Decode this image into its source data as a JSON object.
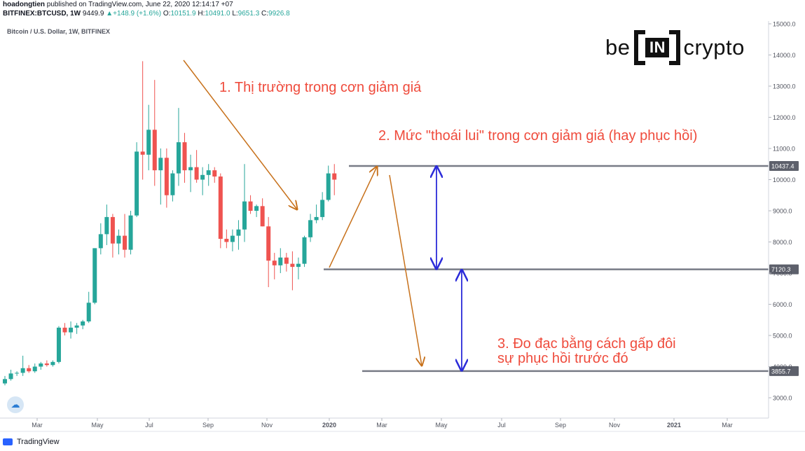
{
  "header": {
    "publisher": "hoadongtien",
    "published_text": "published on TradingView.com, June 22, 2020 12:14:17 +07",
    "symbol": "BITFINEX:BTCUSD, 1W",
    "last": "9449.9",
    "change_arrow": "▲",
    "change": "+148.9 (+1.6%)",
    "o_label": "O:",
    "o_value": "10151.9",
    "h_label": "H:",
    "h_value": "10491.0",
    "l_label": "L:",
    "l_value": "9651.3",
    "c_label": "C:",
    "c_value": "9926.8"
  },
  "subtitle": "Bitcoin / U.S. Dollar, 1W, BITFINEX",
  "footer": {
    "brand": "TradingView"
  },
  "logo": {
    "left": "be",
    "center": "IN",
    "right": "crypto"
  },
  "annotations": {
    "a1": "1. Thị trường trong cơn giảm giá",
    "a2": "2. Mức \"thoái lui\" trong cơn giảm giá (hay phục hồi)",
    "a3_line1": "3. Đo đạc bằng cách gấp đôi",
    "a3_line2": "sự phục hồi trước đó"
  },
  "colors": {
    "up": "#26a69a",
    "down": "#ef5350",
    "annotation_text": "#ef4b3c",
    "trend_arrow": "#c7711b",
    "measure_arrow": "#2b2bd9",
    "level_line": "#787b86",
    "price_tag_bg": "#5d606b"
  },
  "chart_data": {
    "type": "candlestick",
    "title": "Bitcoin / U.S. Dollar, 1W, BITFINEX",
    "ylim": [
      2400,
      15000
    ],
    "y_ticks": [
      3000,
      4000,
      5000,
      6000,
      7000,
      8000,
      9000,
      10000,
      11000,
      12000,
      13000,
      14000,
      15000
    ],
    "y_tick_labels": [
      "3000.0",
      "4000.0",
      "5000.0",
      "6000.0",
      "7000.0",
      "8000.0",
      "9000.0",
      "10000.0",
      "11000.0",
      "12000.0",
      "13000.0",
      "14000.0",
      "15000.0"
    ],
    "x_tick_labels": [
      "Mar",
      "May",
      "Jul",
      "Sep",
      "Nov",
      "2020",
      "Mar",
      "May",
      "Jul",
      "Sep",
      "Nov",
      "2021",
      "Mar"
    ],
    "candles": [
      {
        "o": 3460,
        "h": 3700,
        "l": 3400,
        "c": 3600
      },
      {
        "o": 3600,
        "h": 3900,
        "l": 3550,
        "c": 3780
      },
      {
        "o": 3780,
        "h": 3850,
        "l": 3700,
        "c": 3800
      },
      {
        "o": 3800,
        "h": 4350,
        "l": 3700,
        "c": 3950
      },
      {
        "o": 3950,
        "h": 4050,
        "l": 3800,
        "c": 3850
      },
      {
        "o": 3850,
        "h": 4100,
        "l": 3800,
        "c": 4000
      },
      {
        "o": 4000,
        "h": 4150,
        "l": 3900,
        "c": 4100
      },
      {
        "o": 4100,
        "h": 4200,
        "l": 4000,
        "c": 4050
      },
      {
        "o": 4050,
        "h": 4200,
        "l": 4000,
        "c": 4150
      },
      {
        "o": 4150,
        "h": 5300,
        "l": 4100,
        "c": 5250
      },
      {
        "o": 5250,
        "h": 5400,
        "l": 5000,
        "c": 5100
      },
      {
        "o": 5100,
        "h": 5450,
        "l": 4900,
        "c": 5250
      },
      {
        "o": 5250,
        "h": 5400,
        "l": 5050,
        "c": 5320
      },
      {
        "o": 5320,
        "h": 5500,
        "l": 5200,
        "c": 5450
      },
      {
        "o": 5450,
        "h": 6400,
        "l": 5400,
        "c": 6050
      },
      {
        "o": 6050,
        "h": 7800,
        "l": 6000,
        "c": 7800
      },
      {
        "o": 7800,
        "h": 8600,
        "l": 7600,
        "c": 8250
      },
      {
        "o": 8250,
        "h": 9200,
        "l": 7900,
        "c": 8800
      },
      {
        "o": 8800,
        "h": 8900,
        "l": 7500,
        "c": 7950
      },
      {
        "o": 7950,
        "h": 8400,
        "l": 7600,
        "c": 8200
      },
      {
        "o": 8200,
        "h": 8900,
        "l": 7500,
        "c": 7750
      },
      {
        "o": 7750,
        "h": 9000,
        "l": 7600,
        "c": 8850
      },
      {
        "o": 8850,
        "h": 11200,
        "l": 8800,
        "c": 10900
      },
      {
        "o": 10900,
        "h": 13800,
        "l": 10000,
        "c": 10800
      },
      {
        "o": 10800,
        "h": 12400,
        "l": 10300,
        "c": 11600
      },
      {
        "o": 11600,
        "h": 13200,
        "l": 9800,
        "c": 10300
      },
      {
        "o": 10300,
        "h": 11000,
        "l": 9200,
        "c": 10700
      },
      {
        "o": 10700,
        "h": 11000,
        "l": 9100,
        "c": 9500
      },
      {
        "o": 9500,
        "h": 10300,
        "l": 9300,
        "c": 10200
      },
      {
        "o": 10200,
        "h": 12300,
        "l": 9800,
        "c": 11200
      },
      {
        "o": 11200,
        "h": 11500,
        "l": 9900,
        "c": 10300
      },
      {
        "o": 10300,
        "h": 10800,
        "l": 9600,
        "c": 10400
      },
      {
        "o": 10400,
        "h": 10950,
        "l": 9900,
        "c": 10000
      },
      {
        "o": 10000,
        "h": 10400,
        "l": 9500,
        "c": 10150
      },
      {
        "o": 10150,
        "h": 10500,
        "l": 9800,
        "c": 10300
      },
      {
        "o": 10300,
        "h": 10400,
        "l": 9900,
        "c": 10100
      },
      {
        "o": 10100,
        "h": 10200,
        "l": 7800,
        "c": 8100
      },
      {
        "o": 8100,
        "h": 8400,
        "l": 7800,
        "c": 8000
      },
      {
        "o": 8000,
        "h": 8400,
        "l": 7700,
        "c": 8200
      },
      {
        "o": 8200,
        "h": 8700,
        "l": 7750,
        "c": 8400
      },
      {
        "o": 8400,
        "h": 10500,
        "l": 8000,
        "c": 9300
      },
      {
        "o": 9300,
        "h": 9500,
        "l": 8900,
        "c": 9000
      },
      {
        "o": 9000,
        "h": 9200,
        "l": 8800,
        "c": 9150
      },
      {
        "o": 9150,
        "h": 9400,
        "l": 8500,
        "c": 8500
      },
      {
        "o": 8500,
        "h": 8800,
        "l": 6550,
        "c": 7400
      },
      {
        "o": 7400,
        "h": 7650,
        "l": 6800,
        "c": 7250
      },
      {
        "o": 7250,
        "h": 7800,
        "l": 7000,
        "c": 7500
      },
      {
        "o": 7500,
        "h": 7650,
        "l": 7050,
        "c": 7300
      },
      {
        "o": 7300,
        "h": 7700,
        "l": 6450,
        "c": 7200
      },
      {
        "o": 7200,
        "h": 7500,
        "l": 6800,
        "c": 7300
      },
      {
        "o": 7300,
        "h": 8200,
        "l": 7200,
        "c": 8150
      },
      {
        "o": 8150,
        "h": 8900,
        "l": 8000,
        "c": 8700
      },
      {
        "o": 8700,
        "h": 9200,
        "l": 8600,
        "c": 8800
      },
      {
        "o": 8800,
        "h": 9600,
        "l": 8700,
        "c": 9350
      },
      {
        "o": 9350,
        "h": 10450,
        "l": 9300,
        "c": 10200
      },
      {
        "o": 10200,
        "h": 10500,
        "l": 9500,
        "c": 10000
      }
    ],
    "levels": [
      {
        "value": 10437.4,
        "label": "10437.4"
      },
      {
        "value": 7120.3,
        "label": "7120.3"
      },
      {
        "value": 3855.7,
        "label": "3855.7"
      }
    ],
    "trend_arrows": [
      {
        "from": {
          "bar": 20,
          "price": 13900
        },
        "to": {
          "bar": 42,
          "price": 9000
        }
      },
      {
        "from": {
          "bar": 48,
          "price": 7100
        },
        "to": {
          "bar": 56,
          "price": 10400
        }
      },
      {
        "from": {
          "bar": 58,
          "price": 10150
        },
        "to": {
          "bar": 64,
          "price": 4000
        }
      }
    ],
    "measure_arrows": [
      {
        "bar": 66,
        "from": 10437.4,
        "to": 7120.3
      },
      {
        "bar": 70,
        "from": 7120.3,
        "to": 3855.7
      }
    ]
  }
}
